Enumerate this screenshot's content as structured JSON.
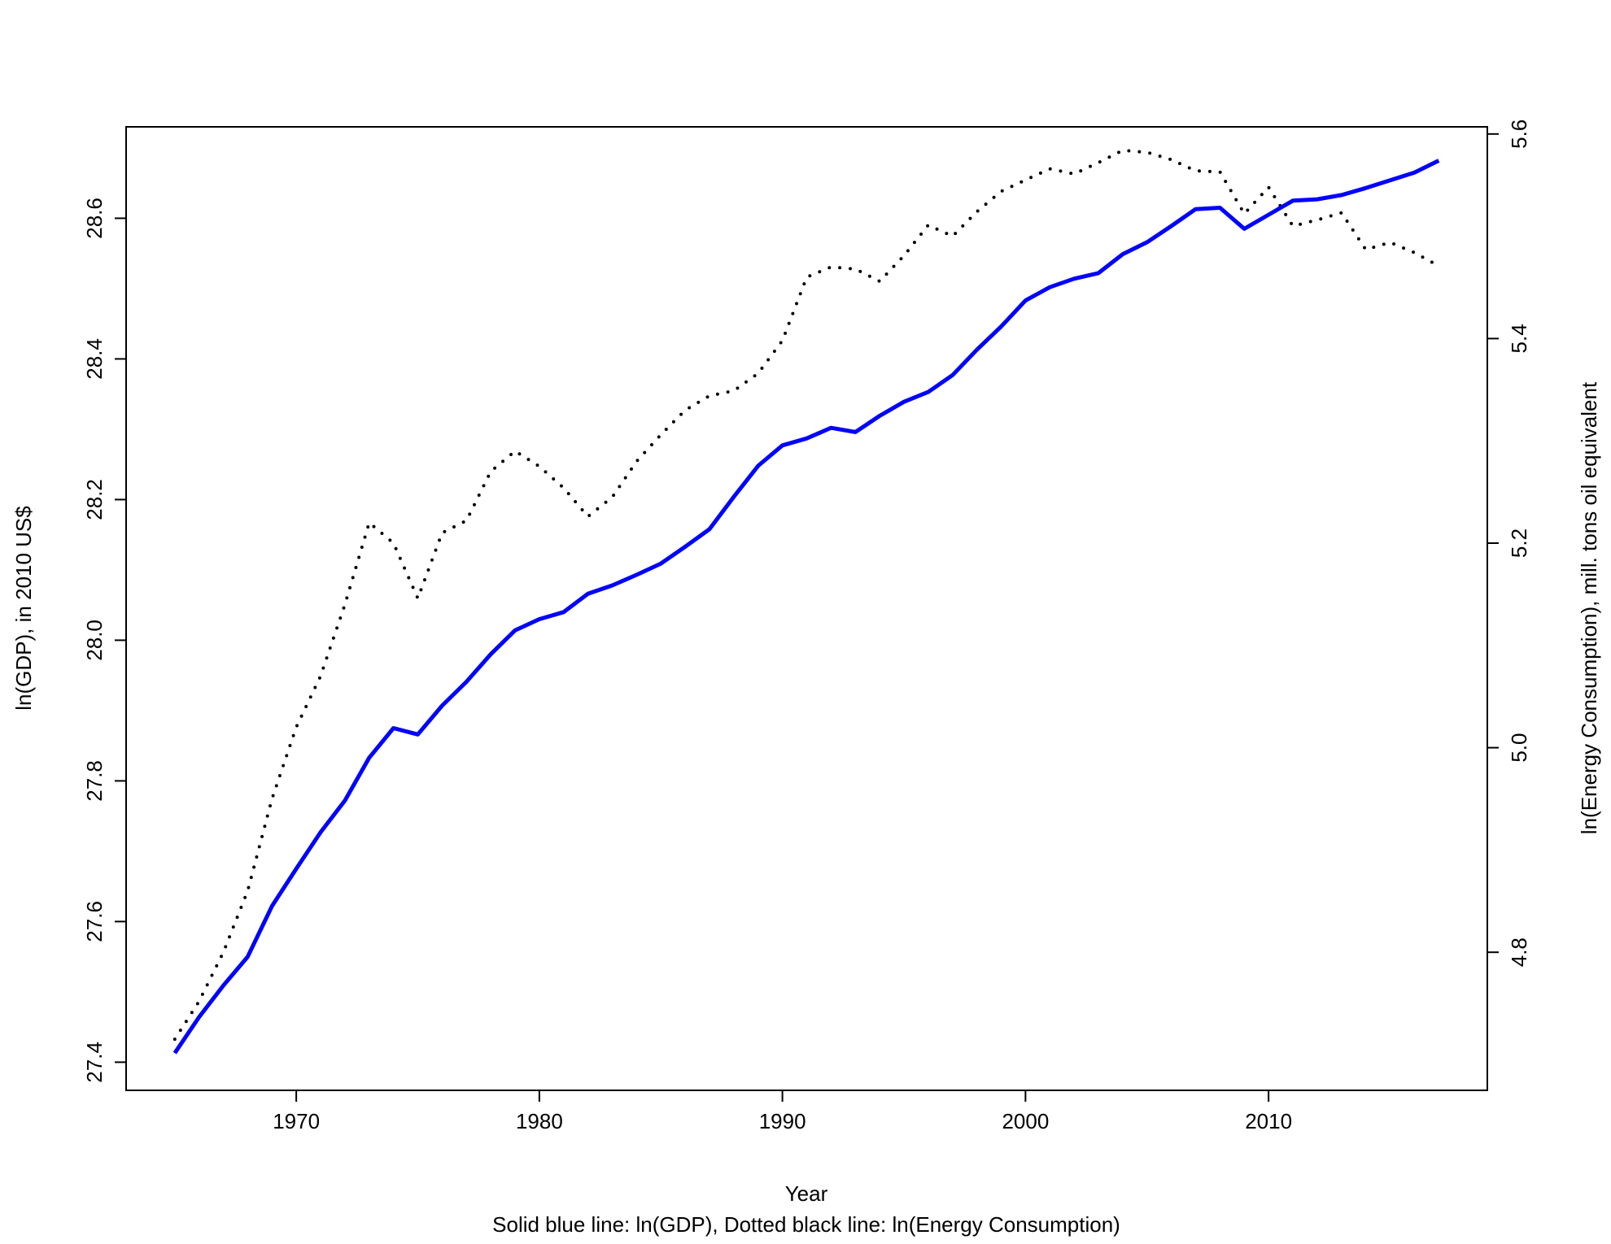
{
  "chart_data": {
    "type": "line",
    "xlabel": "Year",
    "ylabel_left": "ln(GDP), in 2010 US$",
    "ylabel_right": "ln(Energy Consumption), mill. tons oil equivalent",
    "caption": "Solid blue line: ln(GDP), Dotted black line: ln(Energy Consumption)",
    "xlim": [
      1963,
      2019
    ],
    "ylim_left": [
      27.36,
      28.73
    ],
    "ylim_right": [
      4.665,
      5.607
    ],
    "x_ticks": [
      "1970",
      "1980",
      "1990",
      "2000",
      "2010"
    ],
    "y_left_ticks": [
      "27.4",
      "27.6",
      "27.8",
      "28.0",
      "28.2",
      "28.4",
      "28.6"
    ],
    "y_right_ticks": [
      "4.8",
      "5.0",
      "5.2",
      "5.4",
      "5.6"
    ],
    "grid": false,
    "colors": {
      "gdp": "#0000ff",
      "energy": "#000000"
    },
    "x": [
      1965,
      1966,
      1967,
      1968,
      1969,
      1970,
      1971,
      1972,
      1973,
      1974,
      1975,
      1976,
      1977,
      1978,
      1979,
      1980,
      1981,
      1982,
      1983,
      1984,
      1985,
      1986,
      1987,
      1988,
      1989,
      1990,
      1991,
      1992,
      1993,
      1994,
      1995,
      1996,
      1997,
      1998,
      1999,
      2000,
      2001,
      2002,
      2003,
      2004,
      2005,
      2006,
      2007,
      2008,
      2009,
      2010,
      2011,
      2012,
      2013,
      2014,
      2015,
      2016,
      2017
    ],
    "series": [
      {
        "line": "solid",
        "axis": "left",
        "color": "#0000ff",
        "values": [
          27.413,
          27.464,
          27.509,
          27.55,
          27.622,
          27.675,
          27.727,
          27.772,
          27.833,
          27.875,
          27.866,
          27.907,
          27.941,
          27.98,
          28.014,
          28.03,
          28.04,
          28.066,
          28.078,
          28.093,
          28.109,
          28.133,
          28.158,
          28.204,
          28.248,
          28.277,
          28.287,
          28.302,
          28.296,
          28.319,
          28.339,
          28.353,
          28.377,
          28.413,
          28.446,
          28.483,
          28.502,
          28.514,
          28.522,
          28.549,
          28.566,
          28.589,
          28.613,
          28.615,
          28.585,
          28.605,
          28.625,
          28.627,
          28.633,
          28.643,
          28.654,
          28.665,
          28.682
        ]
      },
      {
        "line": "dotted",
        "axis": "right",
        "color": "#000000",
        "values": [
          4.715,
          4.752,
          4.8,
          4.86,
          4.95,
          5.02,
          5.07,
          5.14,
          5.22,
          5.2,
          5.146,
          5.21,
          5.222,
          5.27,
          5.29,
          5.275,
          5.254,
          5.226,
          5.245,
          5.28,
          5.306,
          5.33,
          5.344,
          5.349,
          5.366,
          5.398,
          5.46,
          5.47,
          5.468,
          5.456,
          5.481,
          5.511,
          5.5,
          5.524,
          5.544,
          5.555,
          5.566,
          5.561,
          5.572,
          5.584,
          5.582,
          5.575,
          5.564,
          5.563,
          5.522,
          5.548,
          5.51,
          5.516,
          5.523,
          5.487,
          5.494,
          5.484,
          5.471
        ]
      }
    ]
  }
}
